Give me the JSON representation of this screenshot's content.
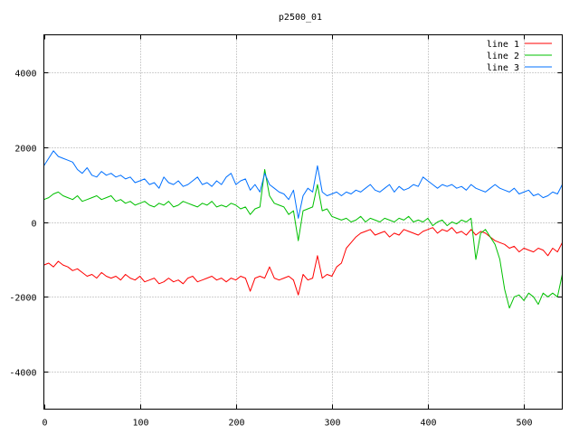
{
  "chart_data": {
    "type": "line",
    "title": "p2500_01",
    "xlabel": "",
    "ylabel": "",
    "xlim": [
      0,
      540
    ],
    "ylim": [
      -5000,
      5000
    ],
    "x_ticks": [
      0,
      100,
      200,
      300,
      400,
      500
    ],
    "y_ticks": [
      -4000,
      -2000,
      0,
      2000,
      4000
    ],
    "grid": true,
    "legend_position": "top-right",
    "series": [
      {
        "name": "line 1",
        "color": "#ff0000",
        "x": [
          0,
          5,
          10,
          15,
          20,
          25,
          30,
          35,
          40,
          45,
          50,
          55,
          60,
          65,
          70,
          75,
          80,
          85,
          90,
          95,
          100,
          105,
          110,
          115,
          120,
          125,
          130,
          135,
          140,
          145,
          150,
          155,
          160,
          165,
          170,
          175,
          180,
          185,
          190,
          195,
          200,
          205,
          210,
          215,
          220,
          225,
          230,
          235,
          240,
          245,
          250,
          255,
          260,
          265,
          270,
          275,
          280,
          285,
          290,
          295,
          300,
          305,
          310,
          315,
          320,
          325,
          330,
          335,
          340,
          345,
          350,
          355,
          360,
          365,
          370,
          375,
          380,
          385,
          390,
          395,
          400,
          405,
          410,
          415,
          420,
          425,
          430,
          435,
          440,
          445,
          450,
          455,
          460,
          465,
          470,
          475,
          480,
          485,
          490,
          495,
          500,
          505,
          510,
          515,
          520,
          525,
          530,
          535,
          540
        ],
        "y": [
          -1150,
          -1100,
          -1200,
          -1050,
          -1150,
          -1200,
          -1300,
          -1250,
          -1350,
          -1450,
          -1400,
          -1500,
          -1350,
          -1450,
          -1500,
          -1450,
          -1550,
          -1400,
          -1500,
          -1550,
          -1450,
          -1600,
          -1550,
          -1500,
          -1650,
          -1600,
          -1500,
          -1600,
          -1550,
          -1650,
          -1500,
          -1450,
          -1600,
          -1550,
          -1500,
          -1450,
          -1550,
          -1500,
          -1600,
          -1500,
          -1550,
          -1450,
          -1500,
          -1850,
          -1500,
          -1450,
          -1500,
          -1200,
          -1500,
          -1550,
          -1500,
          -1450,
          -1550,
          -1950,
          -1400,
          -1550,
          -1500,
          -900,
          -1500,
          -1400,
          -1450,
          -1200,
          -1100,
          -700,
          -550,
          -400,
          -300,
          -250,
          -200,
          -350,
          -300,
          -250,
          -400,
          -300,
          -350,
          -200,
          -250,
          -300,
          -350,
          -250,
          -200,
          -150,
          -300,
          -200,
          -250,
          -150,
          -300,
          -250,
          -350,
          -200,
          -350,
          -250,
          -300,
          -400,
          -500,
          -550,
          -600,
          -700,
          -650,
          -800,
          -700,
          -750,
          -800,
          -700,
          -750,
          -900,
          -700,
          -800,
          -550
        ]
      },
      {
        "name": "line 2",
        "color": "#00c000",
        "x": [
          0,
          5,
          10,
          15,
          20,
          25,
          30,
          35,
          40,
          45,
          50,
          55,
          60,
          65,
          70,
          75,
          80,
          85,
          90,
          95,
          100,
          105,
          110,
          115,
          120,
          125,
          130,
          135,
          140,
          145,
          150,
          155,
          160,
          165,
          170,
          175,
          180,
          185,
          190,
          195,
          200,
          205,
          210,
          215,
          220,
          225,
          230,
          235,
          240,
          245,
          250,
          255,
          260,
          265,
          270,
          275,
          280,
          285,
          290,
          295,
          300,
          305,
          310,
          315,
          320,
          325,
          330,
          335,
          340,
          345,
          350,
          355,
          360,
          365,
          370,
          375,
          380,
          385,
          390,
          395,
          400,
          405,
          410,
          415,
          420,
          425,
          430,
          435,
          440,
          445,
          450,
          455,
          460,
          465,
          470,
          475,
          480,
          485,
          490,
          495,
          500,
          505,
          510,
          515,
          520,
          525,
          530,
          535,
          540
        ],
        "y": [
          600,
          650,
          750,
          800,
          700,
          650,
          600,
          700,
          550,
          600,
          650,
          700,
          600,
          650,
          700,
          550,
          600,
          500,
          550,
          450,
          500,
          550,
          450,
          400,
          500,
          450,
          550,
          400,
          450,
          550,
          500,
          450,
          400,
          500,
          450,
          550,
          400,
          450,
          400,
          500,
          450,
          350,
          400,
          200,
          350,
          400,
          1400,
          700,
          500,
          450,
          400,
          200,
          300,
          -500,
          300,
          350,
          400,
          1000,
          300,
          350,
          150,
          100,
          50,
          100,
          0,
          50,
          150,
          0,
          100,
          50,
          0,
          100,
          50,
          0,
          100,
          50,
          150,
          0,
          50,
          0,
          100,
          -100,
          0,
          50,
          -100,
          0,
          -50,
          50,
          0,
          100,
          -1000,
          -300,
          -200,
          -400,
          -600,
          -1000,
          -1800,
          -2300,
          -2000,
          -1950,
          -2100,
          -1900,
          -2000,
          -2200,
          -1900,
          -2000,
          -1900,
          -2000,
          -1400
        ]
      },
      {
        "name": "line 3",
        "color": "#0070ff",
        "x": [
          0,
          5,
          10,
          15,
          20,
          25,
          30,
          35,
          40,
          45,
          50,
          55,
          60,
          65,
          70,
          75,
          80,
          85,
          90,
          95,
          100,
          105,
          110,
          115,
          120,
          125,
          130,
          135,
          140,
          145,
          150,
          155,
          160,
          165,
          170,
          175,
          180,
          185,
          190,
          195,
          200,
          205,
          210,
          215,
          220,
          225,
          230,
          235,
          240,
          245,
          250,
          255,
          260,
          265,
          270,
          275,
          280,
          285,
          290,
          295,
          300,
          305,
          310,
          315,
          320,
          325,
          330,
          335,
          340,
          345,
          350,
          355,
          360,
          365,
          370,
          375,
          380,
          385,
          390,
          395,
          400,
          405,
          410,
          415,
          420,
          425,
          430,
          435,
          440,
          445,
          450,
          455,
          460,
          465,
          470,
          475,
          480,
          485,
          490,
          495,
          500,
          505,
          510,
          515,
          520,
          525,
          530,
          535,
          540
        ],
        "y": [
          1500,
          1700,
          1900,
          1750,
          1700,
          1650,
          1600,
          1400,
          1300,
          1450,
          1250,
          1200,
          1350,
          1250,
          1300,
          1200,
          1250,
          1150,
          1200,
          1050,
          1100,
          1150,
          1000,
          1050,
          900,
          1200,
          1050,
          1000,
          1100,
          950,
          1000,
          1100,
          1200,
          1000,
          1050,
          950,
          1100,
          1000,
          1200,
          1300,
          1000,
          1100,
          1150,
          850,
          1000,
          800,
          1300,
          1000,
          900,
          800,
          750,
          600,
          850,
          100,
          700,
          900,
          800,
          1500,
          800,
          700,
          750,
          800,
          700,
          800,
          750,
          850,
          800,
          900,
          1000,
          850,
          800,
          900,
          1000,
          800,
          950,
          850,
          900,
          1000,
          950,
          1200,
          1100,
          1000,
          900,
          1000,
          950,
          1000,
          900,
          950,
          850,
          1000,
          900,
          850,
          800,
          900,
          1000,
          900,
          850,
          800,
          900,
          750,
          800,
          850,
          700,
          750,
          650,
          700,
          800,
          750,
          1000
        ]
      }
    ]
  }
}
